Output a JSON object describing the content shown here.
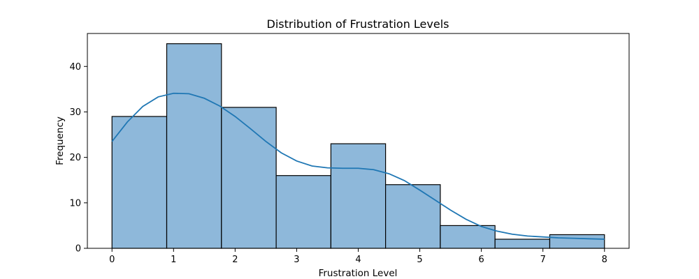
{
  "chart_data": {
    "type": "bar",
    "title": "Distribution of Frustration Levels",
    "xlabel": "Frustration Level",
    "ylabel": "Frequency",
    "xlim": [
      -0.4,
      8.4
    ],
    "ylim": [
      0,
      47.25
    ],
    "x_ticks": [
      0,
      1,
      2,
      3,
      4,
      5,
      6,
      7,
      8
    ],
    "y_ticks": [
      0,
      10,
      20,
      30,
      40
    ],
    "bins": [
      {
        "start": 0.0,
        "end": 0.889,
        "count": 29
      },
      {
        "start": 0.889,
        "end": 1.778,
        "count": 45
      },
      {
        "start": 1.778,
        "end": 2.667,
        "count": 31
      },
      {
        "start": 2.667,
        "end": 3.556,
        "count": 16
      },
      {
        "start": 3.556,
        "end": 4.444,
        "count": 23
      },
      {
        "start": 4.444,
        "end": 5.333,
        "count": 14
      },
      {
        "start": 5.333,
        "end": 6.222,
        "count": 5
      },
      {
        "start": 6.222,
        "end": 7.111,
        "count": 2
      },
      {
        "start": 7.111,
        "end": 8.0,
        "count": 3
      }
    ],
    "kde_curve": {
      "x": [
        0,
        0.25,
        0.5,
        0.75,
        1.0,
        1.25,
        1.5,
        1.75,
        2.0,
        2.25,
        2.5,
        2.75,
        3.0,
        3.25,
        3.5,
        3.75,
        4.0,
        4.25,
        4.5,
        4.75,
        5.0,
        5.25,
        5.5,
        5.75,
        6.0,
        6.25,
        6.5,
        6.75,
        7.0,
        7.25,
        7.5,
        7.75,
        8.0
      ],
      "y": [
        23.5,
        27.8,
        31.2,
        33.3,
        34.1,
        34.0,
        33.0,
        31.3,
        29.0,
        26.3,
        23.5,
        21.0,
        19.2,
        18.1,
        17.7,
        17.6,
        17.6,
        17.3,
        16.4,
        14.9,
        12.8,
        10.6,
        8.4,
        6.4,
        4.8,
        3.8,
        3.1,
        2.7,
        2.5,
        2.3,
        2.2,
        2.1,
        2.0
      ]
    },
    "grid": false,
    "colors": {
      "bar_fill": "#8eb8da",
      "bar_edge": "#000000",
      "kde_line": "#1f77b4"
    }
  }
}
